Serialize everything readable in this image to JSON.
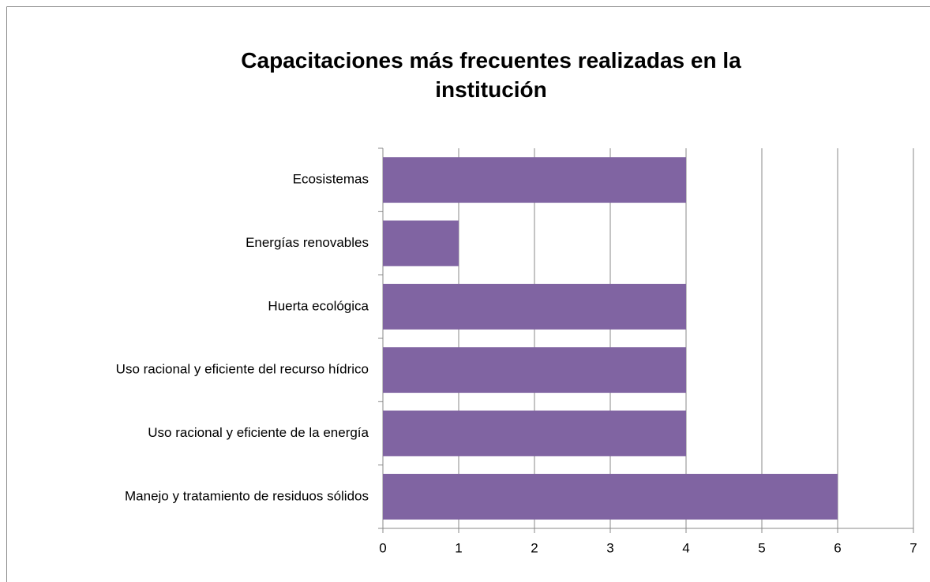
{
  "chart_data": {
    "type": "bar",
    "orientation": "horizontal",
    "title": "Capacitaciones más frecuentes realizadas en la institución",
    "categories": [
      "Ecosistemas",
      "Energías renovables",
      "Huerta ecológica",
      "Uso racional y eficiente del recurso hídrico",
      "Uso racional y eficiente de la energía",
      "Manejo y tratamiento de residuos sólidos"
    ],
    "values": [
      4,
      1,
      4,
      4,
      4,
      6
    ],
    "color": "#8064a2",
    "xlim": [
      0,
      7
    ],
    "xticks": [
      0,
      1,
      2,
      3,
      4,
      5,
      6,
      7
    ],
    "grid": true
  }
}
